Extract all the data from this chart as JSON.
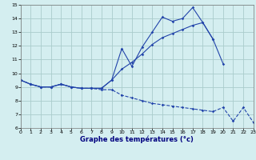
{
  "xlabel": "Graphe des températures (°c)",
  "hours": [
    0,
    1,
    2,
    3,
    4,
    5,
    6,
    7,
    8,
    9,
    10,
    11,
    12,
    13,
    14,
    15,
    16,
    17,
    18,
    19,
    20,
    21,
    22,
    23
  ],
  "line1_y": [
    9.5,
    9.2,
    9.0,
    9.0,
    9.2,
    9.0,
    8.9,
    8.9,
    8.9,
    9.5,
    11.8,
    10.5,
    11.9,
    13.0,
    14.1,
    13.8,
    14.0,
    14.8,
    13.7,
    12.5,
    10.7,
    null,
    null,
    null
  ],
  "line2_y": [
    9.5,
    9.2,
    9.0,
    9.0,
    9.2,
    9.0,
    8.9,
    8.9,
    8.9,
    9.5,
    10.3,
    10.8,
    11.4,
    12.1,
    12.6,
    12.9,
    13.2,
    13.5,
    13.7,
    12.5,
    null,
    null,
    null,
    null
  ],
  "line3_y": [
    9.5,
    9.2,
    9.0,
    9.0,
    9.2,
    9.0,
    8.9,
    8.9,
    8.8,
    8.8,
    8.4,
    8.2,
    8.0,
    7.8,
    7.7,
    7.6,
    7.5,
    7.4,
    7.3,
    7.2,
    7.5,
    6.5,
    7.5,
    6.4
  ],
  "line_color": "#2244aa",
  "bg_color": "#d4eef0",
  "grid_color": "#aacccc",
  "ylim_min": 6,
  "ylim_max": 15,
  "xlim_min": 0,
  "xlim_max": 23,
  "xlabel_color": "#000080",
  "xlabel_fontsize": 6,
  "tick_fontsize": 4.5
}
